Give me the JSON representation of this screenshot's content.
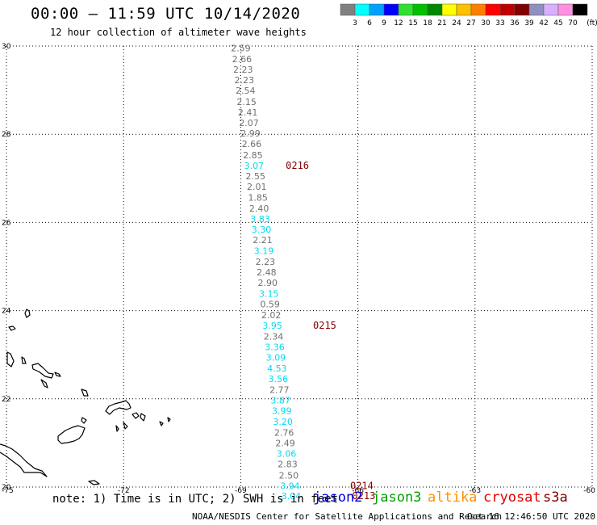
{
  "header": {
    "title": "00:00 – 11:59 UTC 10/14/2020",
    "subtitle": "12 hour collection of altimeter wave heights"
  },
  "colorbar": {
    "unit": "(ft)",
    "swatches": [
      {
        "color": "#808080",
        "label": "3"
      },
      {
        "color": "#00ffff",
        "label": "6"
      },
      {
        "color": "#00a0ff",
        "label": "9"
      },
      {
        "color": "#0000ff",
        "label": "12"
      },
      {
        "color": "#30e030",
        "label": "15"
      },
      {
        "color": "#00c000",
        "label": "18"
      },
      {
        "color": "#008800",
        "label": "21"
      },
      {
        "color": "#ffff00",
        "label": "24"
      },
      {
        "color": "#ffc000",
        "label": "27"
      },
      {
        "color": "#ff8000",
        "label": "30"
      },
      {
        "color": "#ff0000",
        "label": "33"
      },
      {
        "color": "#c00000",
        "label": "36"
      },
      {
        "color": "#800000",
        "label": "39"
      },
      {
        "color": "#9090c0",
        "label": "42"
      },
      {
        "color": "#d8b0ff",
        "label": "45"
      },
      {
        "color": "#ff90e0",
        "label": "70"
      },
      {
        "color": "#000000",
        "label": ""
      }
    ]
  },
  "chart_data": {
    "type": "scatter",
    "xlim": [
      -75,
      -60
    ],
    "ylim": [
      20,
      30
    ],
    "xticks": [
      "-75",
      "-72",
      "-69",
      "-66",
      "-63",
      "-60"
    ],
    "yticks": [
      "20",
      "22",
      "24",
      "26",
      "28",
      "30"
    ],
    "grid": true,
    "color_grey": "#707070",
    "color_cyan": "#00dcf0",
    "time_label_color": "#800000",
    "points": [
      {
        "lon": -69.0,
        "lat": 29.95,
        "v": "2.59",
        "c": "grey"
      },
      {
        "lon": -68.97,
        "lat": 29.71,
        "v": "2.66",
        "c": "grey"
      },
      {
        "lon": -68.94,
        "lat": 29.47,
        "v": "2.23",
        "c": "grey"
      },
      {
        "lon": -68.91,
        "lat": 29.23,
        "v": "2.23",
        "c": "grey"
      },
      {
        "lon": -68.88,
        "lat": 28.99,
        "v": "2.54",
        "c": "grey"
      },
      {
        "lon": -68.85,
        "lat": 28.74,
        "v": "2.15",
        "c": "grey"
      },
      {
        "lon": -68.82,
        "lat": 28.5,
        "v": "2.41",
        "c": "grey"
      },
      {
        "lon": -68.79,
        "lat": 28.26,
        "v": "2.07",
        "c": "grey"
      },
      {
        "lon": -68.75,
        "lat": 28.02,
        "v": "2.99",
        "c": "grey"
      },
      {
        "lon": -68.72,
        "lat": 27.78,
        "v": "2.66",
        "c": "grey"
      },
      {
        "lon": -68.69,
        "lat": 27.53,
        "v": "2.85",
        "c": "grey"
      },
      {
        "lon": -68.66,
        "lat": 27.29,
        "v": "3.07",
        "c": "cyan"
      },
      {
        "lon": -68.62,
        "lat": 27.05,
        "v": "2.55",
        "c": "grey"
      },
      {
        "lon": -68.59,
        "lat": 26.81,
        "v": "2.01",
        "c": "grey"
      },
      {
        "lon": -68.56,
        "lat": 26.57,
        "v": "1.85",
        "c": "grey"
      },
      {
        "lon": -68.53,
        "lat": 26.32,
        "v": "2.40",
        "c": "grey"
      },
      {
        "lon": -68.5,
        "lat": 26.08,
        "v": "3.83",
        "c": "cyan"
      },
      {
        "lon": -68.47,
        "lat": 25.84,
        "v": "3.30",
        "c": "cyan"
      },
      {
        "lon": -68.44,
        "lat": 25.6,
        "v": "2.21",
        "c": "grey"
      },
      {
        "lon": -68.41,
        "lat": 25.36,
        "v": "3.19",
        "c": "cyan"
      },
      {
        "lon": -68.37,
        "lat": 25.11,
        "v": "2.23",
        "c": "grey"
      },
      {
        "lon": -68.34,
        "lat": 24.87,
        "v": "2.48",
        "c": "grey"
      },
      {
        "lon": -68.31,
        "lat": 24.63,
        "v": "2.90",
        "c": "grey"
      },
      {
        "lon": -68.28,
        "lat": 24.39,
        "v": "3.15",
        "c": "cyan"
      },
      {
        "lon": -68.25,
        "lat": 24.15,
        "v": "0.59",
        "c": "grey"
      },
      {
        "lon": -68.22,
        "lat": 23.9,
        "v": "2.02",
        "c": "grey"
      },
      {
        "lon": -68.19,
        "lat": 23.66,
        "v": "3.95",
        "c": "cyan"
      },
      {
        "lon": -68.16,
        "lat": 23.42,
        "v": "2.34",
        "c": "grey"
      },
      {
        "lon": -68.13,
        "lat": 23.18,
        "v": "3.36",
        "c": "cyan"
      },
      {
        "lon": -68.1,
        "lat": 22.94,
        "v": "3.09",
        "c": "cyan"
      },
      {
        "lon": -68.07,
        "lat": 22.69,
        "v": "4.53",
        "c": "cyan"
      },
      {
        "lon": -68.04,
        "lat": 22.45,
        "v": "3.56",
        "c": "cyan"
      },
      {
        "lon": -68.01,
        "lat": 22.21,
        "v": "2.77",
        "c": "grey"
      },
      {
        "lon": -67.98,
        "lat": 21.97,
        "v": "3.87",
        "c": "cyan"
      },
      {
        "lon": -67.95,
        "lat": 21.73,
        "v": "3.99",
        "c": "cyan"
      },
      {
        "lon": -67.92,
        "lat": 21.48,
        "v": "3.20",
        "c": "cyan"
      },
      {
        "lon": -67.89,
        "lat": 21.24,
        "v": "2.76",
        "c": "grey"
      },
      {
        "lon": -67.86,
        "lat": 21.0,
        "v": "2.49",
        "c": "grey"
      },
      {
        "lon": -67.83,
        "lat": 20.76,
        "v": "3.06",
        "c": "cyan"
      },
      {
        "lon": -67.8,
        "lat": 20.52,
        "v": "2.83",
        "c": "grey"
      },
      {
        "lon": -67.77,
        "lat": 20.27,
        "v": "2.50",
        "c": "grey"
      },
      {
        "lon": -67.74,
        "lat": 20.03,
        "v": "3.94",
        "c": "cyan"
      },
      {
        "lon": -67.71,
        "lat": 19.8,
        "v": "3.04",
        "c": "cyan"
      }
    ],
    "time_labels": [
      {
        "lon": -67.55,
        "lat": 27.29,
        "text": "0216"
      },
      {
        "lon": -66.85,
        "lat": 23.66,
        "text": "0215"
      },
      {
        "lon": -65.9,
        "lat": 20.03,
        "text": "0214"
      },
      {
        "lon": -65.85,
        "lat": 19.8,
        "text": "0213"
      }
    ]
  },
  "footer": {
    "note": "note: 1) Time is in UTC; 2) SWH is in feet",
    "satellites": [
      {
        "name": "jason2",
        "color": "#0000e0"
      },
      {
        "name": "jason3",
        "color": "#00a000"
      },
      {
        "name": "altika",
        "color": "#ff9000"
      },
      {
        "name": "cryosat",
        "color": "#e00000"
      },
      {
        "name": "s3a",
        "color": "#800000"
      }
    ],
    "credit": "NOAA/NESDIS Center for Satellite Applications and Research",
    "timestamp": "Oct 16 12:46:50 UTC 2020"
  }
}
